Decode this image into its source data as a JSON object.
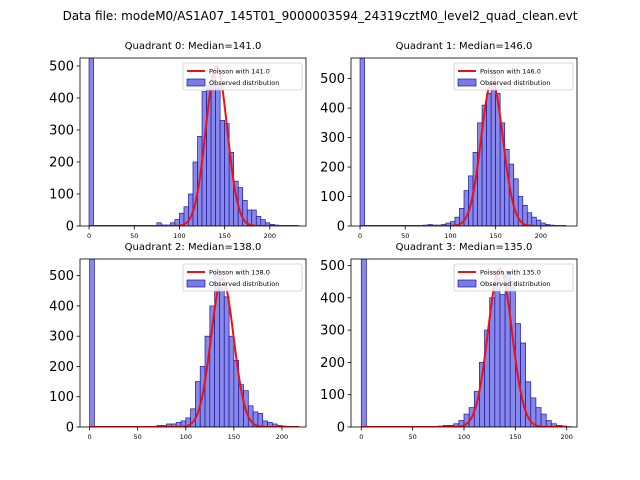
{
  "suptitle": "Data file: modeM0/AS1A07_145T01_9000003594_24319cztM0_level2_quad_clean.evt",
  "colors": {
    "bar_fill": "#7b7be8",
    "bar_edge": "#1a1a99",
    "fit_line": "#ee1111"
  },
  "chart_data": [
    {
      "type": "bar",
      "title": "Quadrant 0: Median=141.0",
      "xlim": [
        -10,
        240
      ],
      "ylim": [
        0,
        525
      ],
      "xticks": [
        0,
        50,
        100,
        150,
        200
      ],
      "yticks": [
        0,
        100,
        200,
        300,
        400,
        500
      ],
      "bin_width": 5,
      "bins": [
        0,
        5,
        10,
        15,
        20,
        25,
        30,
        35,
        40,
        45,
        50,
        55,
        60,
        65,
        70,
        75,
        80,
        85,
        90,
        95,
        100,
        105,
        110,
        115,
        120,
        125,
        130,
        135,
        140,
        145,
        150,
        155,
        160,
        165,
        170,
        175,
        180,
        185,
        190,
        195,
        200,
        205,
        210,
        215,
        220,
        225,
        230
      ],
      "counts": [
        525,
        0,
        0,
        0,
        0,
        0,
        0,
        0,
        0,
        0,
        0,
        0,
        0,
        0,
        0,
        10,
        3,
        3,
        10,
        20,
        40,
        60,
        100,
        200,
        280,
        420,
        440,
        470,
        440,
        330,
        320,
        230,
        140,
        120,
        80,
        50,
        50,
        30,
        20,
        10,
        5,
        3,
        2,
        1,
        0,
        0,
        0
      ],
      "fit_mean": 141.0,
      "fit_peak": 500,
      "fit_xrange": [
        0,
        232
      ],
      "legend": [
        "Poisson with 141.0",
        "Observed distribution"
      ]
    },
    {
      "type": "bar",
      "title": "Quadrant 1: Median=146.0",
      "xlim": [
        -10,
        240
      ],
      "ylim": [
        0,
        570
      ],
      "xticks": [
        0,
        50,
        100,
        150,
        200
      ],
      "yticks": [
        0,
        100,
        200,
        300,
        400,
        500
      ],
      "bin_width": 5,
      "bins": [
        0,
        5,
        10,
        15,
        20,
        25,
        30,
        35,
        40,
        45,
        50,
        55,
        60,
        65,
        70,
        75,
        80,
        85,
        90,
        95,
        100,
        105,
        110,
        115,
        120,
        125,
        130,
        135,
        140,
        145,
        150,
        155,
        160,
        165,
        170,
        175,
        180,
        185,
        190,
        195,
        200,
        205,
        210,
        215,
        220,
        225
      ],
      "counts": [
        570,
        0,
        0,
        0,
        0,
        0,
        0,
        0,
        0,
        0,
        0,
        0,
        0,
        0,
        3,
        5,
        3,
        3,
        5,
        10,
        15,
        30,
        60,
        120,
        170,
        250,
        350,
        410,
        450,
        520,
        450,
        350,
        260,
        210,
        160,
        100,
        70,
        45,
        30,
        20,
        10,
        5,
        3,
        1,
        0,
        0
      ],
      "fit_mean": 146.0,
      "fit_peak": 490,
      "fit_xrange": [
        0,
        228
      ],
      "legend": [
        "Poisson with 146.0",
        "Observed distribution"
      ]
    },
    {
      "type": "bar",
      "title": "Quadrant 2: Median=138.0",
      "xlim": [
        -10,
        225
      ],
      "ylim": [
        0,
        555
      ],
      "xticks": [
        0,
        50,
        100,
        150,
        200
      ],
      "yticks": [
        0,
        100,
        200,
        300,
        400,
        500
      ],
      "bin_width": 5,
      "bins": [
        0,
        5,
        10,
        15,
        20,
        25,
        30,
        35,
        40,
        45,
        50,
        55,
        60,
        65,
        70,
        75,
        80,
        85,
        90,
        95,
        100,
        105,
        110,
        115,
        120,
        125,
        130,
        135,
        140,
        145,
        150,
        155,
        160,
        165,
        170,
        175,
        180,
        185,
        190,
        195,
        200,
        205,
        210,
        215
      ],
      "counts": [
        555,
        0,
        0,
        0,
        0,
        0,
        0,
        0,
        0,
        0,
        0,
        0,
        0,
        0,
        5,
        5,
        10,
        10,
        15,
        20,
        30,
        60,
        150,
        200,
        300,
        400,
        520,
        460,
        430,
        300,
        220,
        140,
        120,
        70,
        50,
        45,
        20,
        15,
        10,
        5,
        3,
        1,
        0,
        0
      ],
      "fit_mean": 138.0,
      "fit_peak": 490,
      "fit_xrange": [
        0,
        218
      ],
      "legend": [
        "Poisson with 138.0",
        "Observed distribution"
      ]
    },
    {
      "type": "bar",
      "title": "Quadrant 3: Median=135.0",
      "xlim": [
        -10,
        210
      ],
      "ylim": [
        0,
        520
      ],
      "xticks": [
        0,
        50,
        100,
        150,
        200
      ],
      "yticks": [
        0,
        100,
        200,
        300,
        400,
        500
      ],
      "bin_width": 5,
      "bins": [
        0,
        5,
        10,
        15,
        20,
        25,
        30,
        35,
        40,
        45,
        50,
        55,
        60,
        65,
        70,
        75,
        80,
        85,
        90,
        95,
        100,
        105,
        110,
        115,
        120,
        125,
        130,
        135,
        140,
        145,
        150,
        155,
        160,
        165,
        170,
        175,
        180,
        185,
        190,
        195,
        200
      ],
      "counts": [
        520,
        0,
        0,
        0,
        0,
        0,
        0,
        0,
        0,
        0,
        0,
        0,
        0,
        0,
        0,
        3,
        5,
        5,
        10,
        20,
        40,
        60,
        110,
        200,
        300,
        400,
        460,
        410,
        480,
        450,
        320,
        260,
        140,
        90,
        60,
        40,
        20,
        10,
        5,
        3,
        1
      ],
      "fit_mean": 135.0,
      "fit_peak": 490,
      "fit_xrange": [
        0,
        200
      ],
      "legend": [
        "Poisson with 135.0",
        "Observed distribution"
      ]
    }
  ]
}
